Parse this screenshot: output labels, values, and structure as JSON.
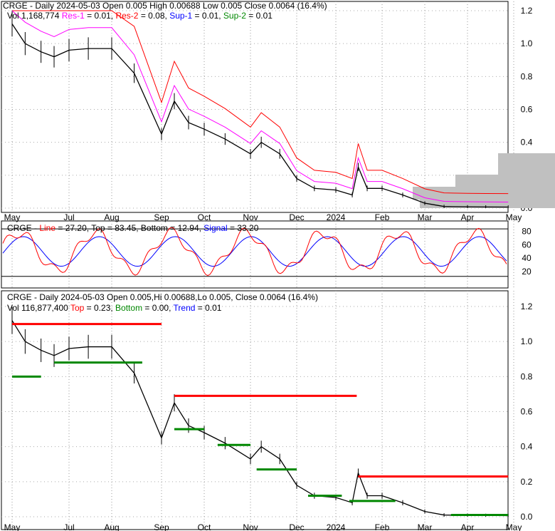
{
  "panel1": {
    "title": "CRGE - Daily 2024-05-03 Open 0.005  High 0.00688  Low 0.005  Close 0.0064 (16.4%)",
    "vol": "Vol 1,168,774",
    "res1": "Res-1",
    "res1_val": " = 0.01, ",
    "res2": "Res-2",
    "res2_val": " = 0.08, ",
    "sup1": "Sup-1",
    "sup1_val": " = 0.01, ",
    "sup2": "Sup-2",
    "sup2_val": " = 0.01"
  },
  "panel2": {
    "prefix": "CRGE - ",
    "line": "Line",
    "line_val": " = 27.20, Top = 83.45, Bottom = 12.94, ",
    "signal": "Signal",
    "signal_val": " = 33.20"
  },
  "panel3": {
    "title": "CRGE - Daily 2024-05-03 Open 0.005,Hi 0.00688,Lo 0.005, Close 0.0064 (16.4%)",
    "vol": "Vol 116,877,400 ",
    "top": "Top",
    "top_val": " = 0.23, ",
    "bottom": "Bottom",
    "bottom_val": " = 0.00, ",
    "trend": "Trend",
    "trend_val": " = 0.01"
  },
  "colors": {
    "res1": "#ff00ff",
    "res2": "#ff0000",
    "sup1": "#0000ff",
    "sup2": "#008000",
    "line": "#ff0000",
    "signal": "#0000ff"
  },
  "chart_data": {
    "type": "line",
    "x_ticks": [
      "May",
      "Jul",
      "Aug",
      "Sep",
      "Oct",
      "Nov",
      "Dec",
      "2024",
      "Feb",
      "Mar",
      "Apr",
      "May"
    ],
    "price_ticks": [
      "0.0",
      "0.2",
      "0.4",
      "0.6",
      "0.8",
      "1.0",
      "1.2"
    ],
    "price_ticks_bottom": [
      "0.0",
      "0.2",
      "0.4",
      "0.6",
      "0.8",
      "1.0",
      "1.2"
    ],
    "osc_ticks": [
      "20",
      "40",
      "60",
      "80"
    ],
    "ylim": [
      0,
      1.2
    ],
    "series": [
      {
        "name": "Close",
        "dates": [
          "2023-05-01",
          "2023-05-15",
          "2023-06-01",
          "2023-06-15",
          "2023-07-01",
          "2023-07-15",
          "2023-08-01",
          "2023-08-15",
          "2023-09-01",
          "2023-09-10",
          "2023-09-20",
          "2023-10-01",
          "2023-10-15",
          "2023-11-01",
          "2023-11-08",
          "2023-11-20",
          "2023-12-01",
          "2023-12-15",
          "2024-01-01",
          "2024-01-12",
          "2024-01-16",
          "2024-01-22",
          "2024-02-01",
          "2024-02-15",
          "2024-03-01",
          "2024-03-15",
          "2024-04-01",
          "2024-04-15",
          "2024-05-03"
        ],
        "values": [
          1.12,
          1.0,
          0.95,
          0.92,
          0.96,
          0.97,
          0.97,
          0.82,
          0.45,
          0.65,
          0.52,
          0.48,
          0.42,
          0.33,
          0.4,
          0.33,
          0.18,
          0.12,
          0.11,
          0.08,
          0.25,
          0.12,
          0.12,
          0.08,
          0.03,
          0.01,
          0.008,
          0.007,
          0.0064
        ]
      }
    ],
    "oscillator": {
      "top": 83.45,
      "bottom": 12.94,
      "line": 27.2,
      "signal": 33.2,
      "ylim": [
        0,
        90
      ]
    },
    "resistance_segments": [
      {
        "from": "2023-05-01",
        "to": "2023-09-01",
        "value": 1.1
      },
      {
        "from": "2023-09-10",
        "to": "2024-01-15",
        "value": 0.69
      },
      {
        "from": "2024-01-16",
        "to": "2024-05-03",
        "value": 0.23
      }
    ],
    "support_segments": [
      {
        "from": "2023-05-01",
        "to": "2023-06-01",
        "value": 0.8
      },
      {
        "from": "2023-06-15",
        "to": "2023-08-20",
        "value": 0.88
      },
      {
        "from": "2023-09-10",
        "to": "2023-10-01",
        "value": 0.5
      },
      {
        "from": "2023-10-10",
        "to": "2023-11-01",
        "value": 0.41
      },
      {
        "from": "2023-11-05",
        "to": "2023-12-01",
        "value": 0.27
      },
      {
        "from": "2023-12-10",
        "to": "2024-01-05",
        "value": 0.12
      },
      {
        "from": "2024-01-10",
        "to": "2024-02-10",
        "value": 0.09
      },
      {
        "from": "2024-03-20",
        "to": "2024-05-03",
        "value": 0.01
      }
    ]
  }
}
